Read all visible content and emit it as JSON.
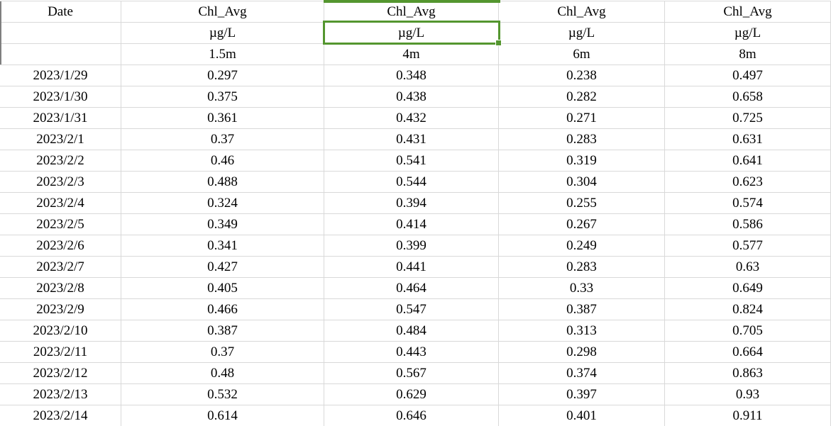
{
  "table": {
    "columns": [
      {
        "header": "Date",
        "unit": "",
        "depth": ""
      },
      {
        "header": "Chl_Avg",
        "unit": "µg/L",
        "depth": "1.5m"
      },
      {
        "header": "Chl_Avg",
        "unit": "µg/L",
        "depth": "4m"
      },
      {
        "header": "Chl_Avg",
        "unit": "µg/L",
        "depth": "6m"
      },
      {
        "header": "Chl_Avg",
        "unit": "µg/L",
        "depth": "8m"
      }
    ],
    "rows": [
      [
        "2023/1/29",
        "0.297",
        "0.348",
        "0.238",
        "0.497"
      ],
      [
        "2023/1/30",
        "0.375",
        "0.438",
        "0.282",
        "0.658"
      ],
      [
        "2023/1/31",
        "0.361",
        "0.432",
        "0.271",
        "0.725"
      ],
      [
        "2023/2/1",
        "0.37",
        "0.431",
        "0.283",
        "0.631"
      ],
      [
        "2023/2/2",
        "0.46",
        "0.541",
        "0.319",
        "0.641"
      ],
      [
        "2023/2/3",
        "0.488",
        "0.544",
        "0.304",
        "0.623"
      ],
      [
        "2023/2/4",
        "0.324",
        "0.394",
        "0.255",
        "0.574"
      ],
      [
        "2023/2/5",
        "0.349",
        "0.414",
        "0.267",
        "0.586"
      ],
      [
        "2023/2/6",
        "0.341",
        "0.399",
        "0.249",
        "0.577"
      ],
      [
        "2023/2/7",
        "0.427",
        "0.441",
        "0.283",
        "0.63"
      ],
      [
        "2023/2/8",
        "0.405",
        "0.464",
        "0.33",
        "0.649"
      ],
      [
        "2023/2/9",
        "0.466",
        "0.547",
        "0.387",
        "0.824"
      ],
      [
        "2023/2/10",
        "0.387",
        "0.484",
        "0.313",
        "0.705"
      ],
      [
        "2023/2/11",
        "0.37",
        "0.443",
        "0.298",
        "0.664"
      ],
      [
        "2023/2/12",
        "0.48",
        "0.567",
        "0.374",
        "0.863"
      ],
      [
        "2023/2/13",
        "0.532",
        "0.629",
        "0.397",
        "0.93"
      ],
      [
        "2023/2/14",
        "0.614",
        "0.646",
        "0.401",
        "0.911"
      ]
    ]
  },
  "selection": {
    "selected_cell_value": "µg/L",
    "selected_cell_row": "units-row",
    "selected_cell_column_depth": "4m"
  },
  "colors": {
    "background": "#FFFFFF",
    "text": "#000000",
    "gridline": "#D9D9D9",
    "selection_green": "#54962F",
    "header_edge_gray": "#7F7F7F"
  }
}
